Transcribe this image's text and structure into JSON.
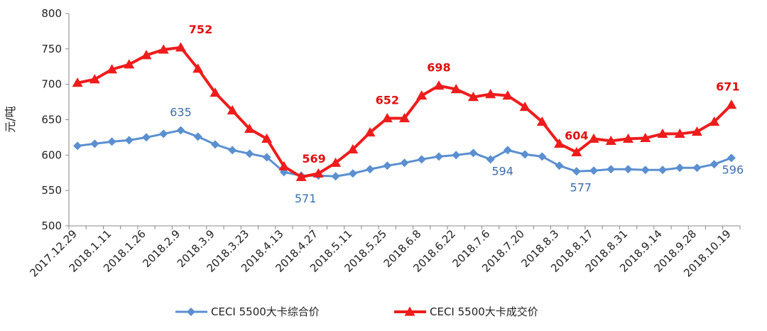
{
  "chart_data": {
    "type": "line",
    "title": "",
    "xlabel": "",
    "ylabel": "元/吨",
    "ylim": [
      500,
      800
    ],
    "yticks": [
      500,
      550,
      600,
      650,
      700,
      750,
      800
    ],
    "grid": false,
    "legend_position": "bottom",
    "x": [
      "2017.12.29",
      "2018.1.5",
      "2018.1.11",
      "2018.1.19",
      "2018.1.26",
      "2018.2.2",
      "2018.2.9",
      "2018.3.2",
      "2018.3.9",
      "2018.3.16",
      "2018.3.23",
      "2018.3.30",
      "2018.4.13",
      "2018.4.20",
      "2018.4.27",
      "2018.5.4",
      "2018.5.11",
      "2018.5.18",
      "2018.5.25",
      "2018.6.1",
      "2018.6.8",
      "2018.6.15",
      "2018.6.22",
      "2018.6.29",
      "2018.7.6",
      "2018.7.13",
      "2018.7.20",
      "2018.7.27",
      "2018.8.3",
      "2018.8.10",
      "2018.8.17",
      "2018.8.24",
      "2018.8.31",
      "2018.9.7",
      "2018.9.14",
      "2018.9.21",
      "2018.9.28",
      "2018.10.12",
      "2018.10.19"
    ],
    "x_tick_labels": [
      "2017.12.29",
      "2018.1.11",
      "2018.1.26",
      "2018.2.9",
      "2018.3.9",
      "2018.3.23",
      "2018.4.13",
      "2018.4.27",
      "2018.5.11",
      "2018.5.25",
      "2018.6.8",
      "2018.6.22",
      "2018.7.6",
      "2018.7.20",
      "2018.8.3",
      "2018.8.17",
      "2018.8.31",
      "2018.9.14",
      "2018.9.28",
      "2018.10.19"
    ],
    "series": [
      {
        "name": "CECI 5500大卡综合价",
        "color": "#5b8fd0",
        "marker": "diamond",
        "values": [
          613,
          616,
          619,
          621,
          625,
          630,
          635,
          626,
          615,
          607,
          602,
          597,
          576,
          571,
          571,
          570,
          574,
          580,
          585,
          589,
          594,
          598,
          600,
          603,
          594,
          607,
          601,
          598,
          585,
          577,
          578,
          580,
          580,
          579,
          579,
          582,
          582,
          587,
          596
        ]
      },
      {
        "name": "CECI 5500大卡成交价",
        "color": "#ee1c1c",
        "marker": "triangle",
        "values": [
          702,
          707,
          721,
          728,
          741,
          749,
          752,
          722,
          688,
          663,
          637,
          623,
          584,
          569,
          574,
          589,
          608,
          632,
          652,
          652,
          684,
          698,
          693,
          682,
          686,
          684,
          668,
          647,
          616,
          604,
          623,
          620,
          623,
          624,
          630,
          630,
          633,
          647,
          671
        ]
      }
    ],
    "annotations": [
      {
        "series": 1,
        "index": 6,
        "text": "752"
      },
      {
        "series": 1,
        "index": 13,
        "text": "569"
      },
      {
        "series": 1,
        "index": 18,
        "text": "652"
      },
      {
        "series": 1,
        "index": 21,
        "text": "698"
      },
      {
        "series": 1,
        "index": 29,
        "text": "604"
      },
      {
        "series": 1,
        "index": 38,
        "text": "671"
      },
      {
        "series": 0,
        "index": 6,
        "text": "635"
      },
      {
        "series": 0,
        "index": 13,
        "text": "571"
      },
      {
        "series": 0,
        "index": 24,
        "text": "594"
      },
      {
        "series": 0,
        "index": 29,
        "text": "577"
      },
      {
        "series": 0,
        "index": 38,
        "text": "596"
      }
    ]
  }
}
